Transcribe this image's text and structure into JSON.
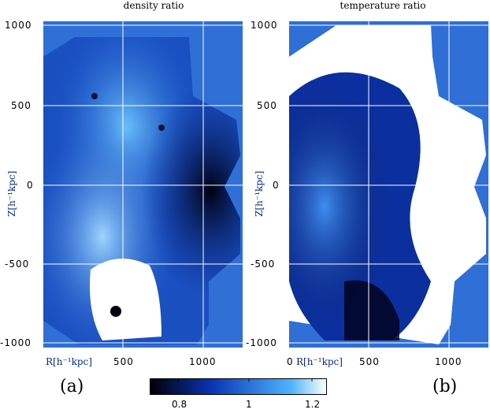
{
  "panels": [
    {
      "id": "a",
      "title": "density ratio",
      "label": "(a)",
      "ylabel": "Z[h⁻¹kpc]",
      "xlabel": "R[h⁻¹kpc]",
      "yticks": [
        "1000",
        "500",
        "0",
        "-500",
        "-1000"
      ],
      "xticks": [
        "500",
        "1000"
      ]
    },
    {
      "id": "b",
      "title": "temperature ratio",
      "label": "(b)",
      "ylabel": "Z[h⁻¹kpc]",
      "xlabel": "R[h⁻¹kpc]",
      "yticks": [
        "1000",
        "500",
        "0",
        "-500",
        "-1000"
      ],
      "xticks": [
        "0",
        "500",
        "1000"
      ]
    }
  ],
  "colorbar": {
    "ticks": [
      "0.8",
      "1",
      "1.2"
    ],
    "colors": {
      "low": "#000000",
      "mid": "#0a34b4",
      "high": "#4fb4ff",
      "top": "#ffffff"
    }
  },
  "colors": {
    "background": "#2f6fd6",
    "grid": "#ffffff"
  }
}
